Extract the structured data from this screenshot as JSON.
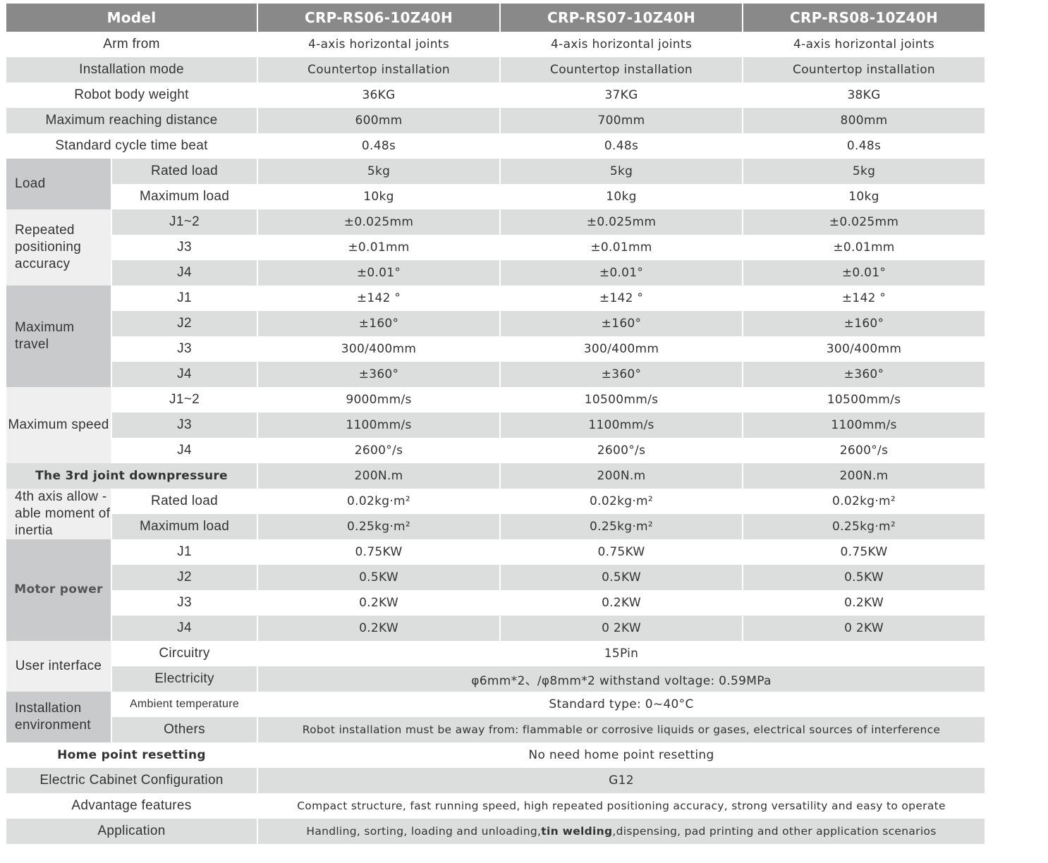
{
  "header": {
    "model_label": "Model",
    "models": [
      "CRP-RS06-10Z40H",
      "CRP-RS07-10Z40H",
      "CRP-RS08-10Z40H"
    ]
  },
  "rows": [
    {
      "label": "Arm from",
      "values": [
        "4-axis horizontal joints",
        "4-axis horizontal joints",
        "4-axis horizontal joints"
      ]
    },
    {
      "label": "Installation mode",
      "values": [
        "Countertop installation",
        "Countertop installation",
        "Countertop installation"
      ]
    },
    {
      "label": "Robot body weight",
      "values": [
        "36KG",
        "37KG",
        "38KG"
      ]
    },
    {
      "label": "Maximum reaching distance",
      "values": [
        "600mm",
        "700mm",
        "800mm"
      ]
    },
    {
      "label": "Standard cycle time beat",
      "values": [
        "0.48s",
        "0.48s",
        "0.48s"
      ]
    },
    {
      "group": "Load",
      "tone": "dark",
      "items": [
        {
          "label": "Rated load",
          "values": [
            "5kg",
            "5kg",
            "5kg"
          ]
        },
        {
          "label": "Maximum load",
          "values": [
            "10kg",
            "10kg",
            "10kg"
          ]
        }
      ]
    },
    {
      "group": "Repeated positioning accuracy",
      "tone": "light",
      "items": [
        {
          "label": "J1~2",
          "values": [
            "±0.025mm",
            "±0.025mm",
            "±0.025mm"
          ]
        },
        {
          "label": "J3",
          "values": [
            "±0.01mm",
            "±0.01mm",
            "±0.01mm"
          ]
        },
        {
          "label": "J4",
          "values": [
            "±0.01°",
            "±0.01°",
            "±0.01°"
          ]
        }
      ]
    },
    {
      "group": "Maximum travel",
      "tone": "dark",
      "items": [
        {
          "label": "J1",
          "values": [
            "±142 °",
            "±142 °",
            "±142 °"
          ]
        },
        {
          "label": "J2",
          "values": [
            "±160°",
            "±160°",
            "±160°"
          ]
        },
        {
          "label": "J3",
          "values": [
            "300/400mm",
            "300/400mm",
            "300/400mm"
          ]
        },
        {
          "label": "J4",
          "values": [
            "±360°",
            "±360°",
            "±360°"
          ]
        }
      ]
    },
    {
      "group": "Maximum speed",
      "tone": "light",
      "items": [
        {
          "label": "J1~2",
          "values": [
            "9000mm/s",
            "10500mm/s",
            "10500mm/s"
          ]
        },
        {
          "label": "J3",
          "values": [
            "1100mm/s",
            "1100mm/s",
            "1100mm/s"
          ]
        },
        {
          "label": "J4",
          "values": [
            "2600°/s",
            "2600°/s",
            "2600°/s"
          ]
        }
      ]
    },
    {
      "label": "The 3rd joint downpressure",
      "bold": true,
      "values": [
        "200N.m",
        "200N.m",
        "200N.m"
      ]
    },
    {
      "group": "4th axis allow -able moment of inertia",
      "tone": "light",
      "items": [
        {
          "label": "Rated load",
          "values": [
            "0.02kg·m²",
            "0.02kg·m²",
            "0.02kg·m²"
          ]
        },
        {
          "label": "Maximum load",
          "values": [
            "0.25kg·m²",
            "0.25kg·m²",
            "0.25kg·m²"
          ]
        }
      ]
    },
    {
      "group": "Motor power",
      "tone": "dark",
      "bold": true,
      "items": [
        {
          "label": "J1",
          "values": [
            "0.75KW",
            "0.75KW",
            "0.75KW"
          ]
        },
        {
          "label": "J2",
          "values": [
            "0.5KW",
            "0.5KW",
            "0.5KW"
          ]
        },
        {
          "label": "J3",
          "values": [
            "0.2KW",
            "0.2KW",
            "0.2KW"
          ]
        },
        {
          "label": "J4",
          "values": [
            "0.2KW",
            "0 2KW",
            "0 2KW"
          ]
        }
      ]
    },
    {
      "group": "User interface",
      "tone": "light",
      "items": [
        {
          "label": "Circuitry",
          "value": "15Pin"
        },
        {
          "label": "Electricity",
          "value": "φ6mm*2、/φ8mm*2  withstand voltage: 0.59MPa"
        }
      ]
    },
    {
      "group": "Installation environment",
      "tone": "dark",
      "items": [
        {
          "label": "Ambient temperature",
          "value": "Standard type:   0~40°C"
        },
        {
          "label": "Others",
          "value": "Robot installation must be away from: flammable or corrosive liquids or gases, electrical sources of interference"
        }
      ]
    },
    {
      "label": "Home point resetting",
      "bold": true,
      "value": "No need home point resetting"
    },
    {
      "label": "Electric Cabinet Configuration",
      "value": "G12"
    },
    {
      "label": "Advantage features",
      "value": "Compact structure, fast running speed, high repeated positioning accuracy, strong versatility and easy to operate"
    },
    {
      "label": "Application",
      "value_parts": [
        {
          "text": "Handling, sorting, loading and unloading,",
          "bold": false
        },
        {
          "text": "tin welding",
          "bold": true
        },
        {
          "text": ",dispensing, pad printing and other application scenarios",
          "bold": false
        }
      ]
    }
  ]
}
